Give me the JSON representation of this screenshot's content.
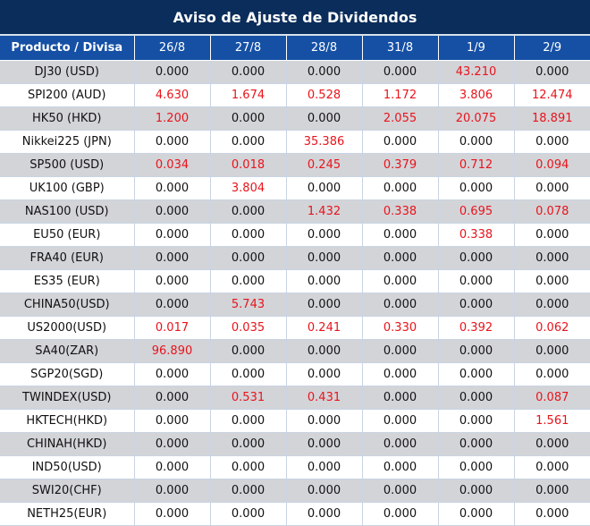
{
  "title": "Aviso de Ajuste de Dividendos",
  "header": {
    "first": "Producto / Divisa",
    "dates": [
      "26/8",
      "27/8",
      "28/8",
      "31/8",
      "1/9",
      "2/9"
    ]
  },
  "colors": {
    "title_bg": "#0b2d5b",
    "header_bg": "#1550a5",
    "alt_row": "#d3d4d8",
    "positive_value": "#e8141b"
  },
  "rows": [
    {
      "product": "DJ30 (USD)",
      "values": [
        "0.000",
        "0.000",
        "0.000",
        "0.000",
        "43.210",
        "0.000"
      ]
    },
    {
      "product": "SPI200 (AUD)",
      "values": [
        "4.630",
        "1.674",
        "0.528",
        "1.172",
        "3.806",
        "12.474"
      ]
    },
    {
      "product": "HK50 (HKD)",
      "values": [
        "1.200",
        "0.000",
        "0.000",
        "2.055",
        "20.075",
        "18.891"
      ]
    },
    {
      "product": "Nikkei225 (JPN)",
      "values": [
        "0.000",
        "0.000",
        "35.386",
        "0.000",
        "0.000",
        "0.000"
      ]
    },
    {
      "product": "SP500 (USD)",
      "values": [
        "0.034",
        "0.018",
        "0.245",
        "0.379",
        "0.712",
        "0.094"
      ]
    },
    {
      "product": "UK100 (GBP)",
      "values": [
        "0.000",
        "3.804",
        "0.000",
        "0.000",
        "0.000",
        "0.000"
      ]
    },
    {
      "product": "NAS100 (USD)",
      "values": [
        "0.000",
        "0.000",
        "1.432",
        "0.338",
        "0.695",
        "0.078"
      ]
    },
    {
      "product": "EU50 (EUR)",
      "values": [
        "0.000",
        "0.000",
        "0.000",
        "0.000",
        "0.338",
        "0.000"
      ]
    },
    {
      "product": "FRA40 (EUR)",
      "values": [
        "0.000",
        "0.000",
        "0.000",
        "0.000",
        "0.000",
        "0.000"
      ]
    },
    {
      "product": "ES35 (EUR)",
      "values": [
        "0.000",
        "0.000",
        "0.000",
        "0.000",
        "0.000",
        "0.000"
      ]
    },
    {
      "product": "CHINA50(USD)",
      "values": [
        "0.000",
        "5.743",
        "0.000",
        "0.000",
        "0.000",
        "0.000"
      ]
    },
    {
      "product": "US2000(USD)",
      "values": [
        "0.017",
        "0.035",
        "0.241",
        "0.330",
        "0.392",
        "0.062"
      ]
    },
    {
      "product": "SA40(ZAR)",
      "values": [
        "96.890",
        "0.000",
        "0.000",
        "0.000",
        "0.000",
        "0.000"
      ]
    },
    {
      "product": "SGP20(SGD)",
      "values": [
        "0.000",
        "0.000",
        "0.000",
        "0.000",
        "0.000",
        "0.000"
      ]
    },
    {
      "product": "TWINDEX(USD)",
      "values": [
        "0.000",
        "0.531",
        "0.431",
        "0.000",
        "0.000",
        "0.087"
      ]
    },
    {
      "product": "HKTECH(HKD)",
      "values": [
        "0.000",
        "0.000",
        "0.000",
        "0.000",
        "0.000",
        "1.561"
      ]
    },
    {
      "product": "CHINAH(HKD)",
      "values": [
        "0.000",
        "0.000",
        "0.000",
        "0.000",
        "0.000",
        "0.000"
      ]
    },
    {
      "product": "IND50(USD)",
      "values": [
        "0.000",
        "0.000",
        "0.000",
        "0.000",
        "0.000",
        "0.000"
      ]
    },
    {
      "product": "SWI20(CHF)",
      "values": [
        "0.000",
        "0.000",
        "0.000",
        "0.000",
        "0.000",
        "0.000"
      ]
    },
    {
      "product": "NETH25(EUR)",
      "values": [
        "0.000",
        "0.000",
        "0.000",
        "0.000",
        "0.000",
        "0.000"
      ]
    }
  ]
}
